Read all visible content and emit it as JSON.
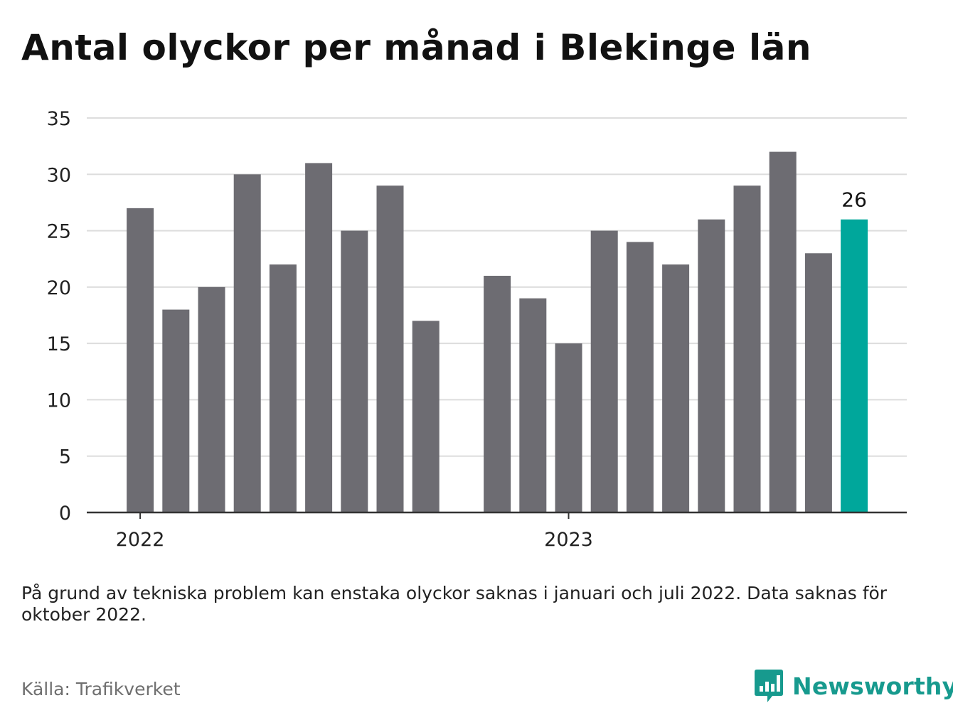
{
  "title": "Antal olyckor per månad i Blekinge län",
  "note": "På grund av tekniska problem kan enstaka olyckor saknas i januari och juli 2022. Data saknas för oktober 2022.",
  "source": "Källa: Trafikverket",
  "brand": {
    "name": "Newsworthy",
    "icon": "newsworthy-logo-icon"
  },
  "colors": {
    "bar": "#6d6c72",
    "highlight": "#00a79b",
    "grid": "#dddddd",
    "axis": "#333333"
  },
  "chart_data": {
    "type": "bar",
    "ylim": [
      0,
      35
    ],
    "yticks": [
      0,
      5,
      10,
      15,
      20,
      25,
      30,
      35
    ],
    "grid": true,
    "xtick_labels": [
      "2022",
      "2023"
    ],
    "categories": [
      "2022-01",
      "2022-02",
      "2022-03",
      "2022-04",
      "2022-05",
      "2022-06",
      "2022-07",
      "2022-08",
      "2022-09",
      "2022-10",
      "2022-11",
      "2022-12",
      "2023-01",
      "2023-02",
      "2023-03",
      "2023-04",
      "2023-05",
      "2023-06",
      "2023-07",
      "2023-08",
      "2023-09",
      "2023-10"
    ],
    "values": [
      27,
      18,
      20,
      30,
      22,
      31,
      25,
      29,
      17,
      null,
      21,
      19,
      15,
      25,
      24,
      22,
      26,
      29,
      32,
      23,
      26,
      null
    ],
    "highlight_index": 20,
    "highlight_label": "26"
  }
}
